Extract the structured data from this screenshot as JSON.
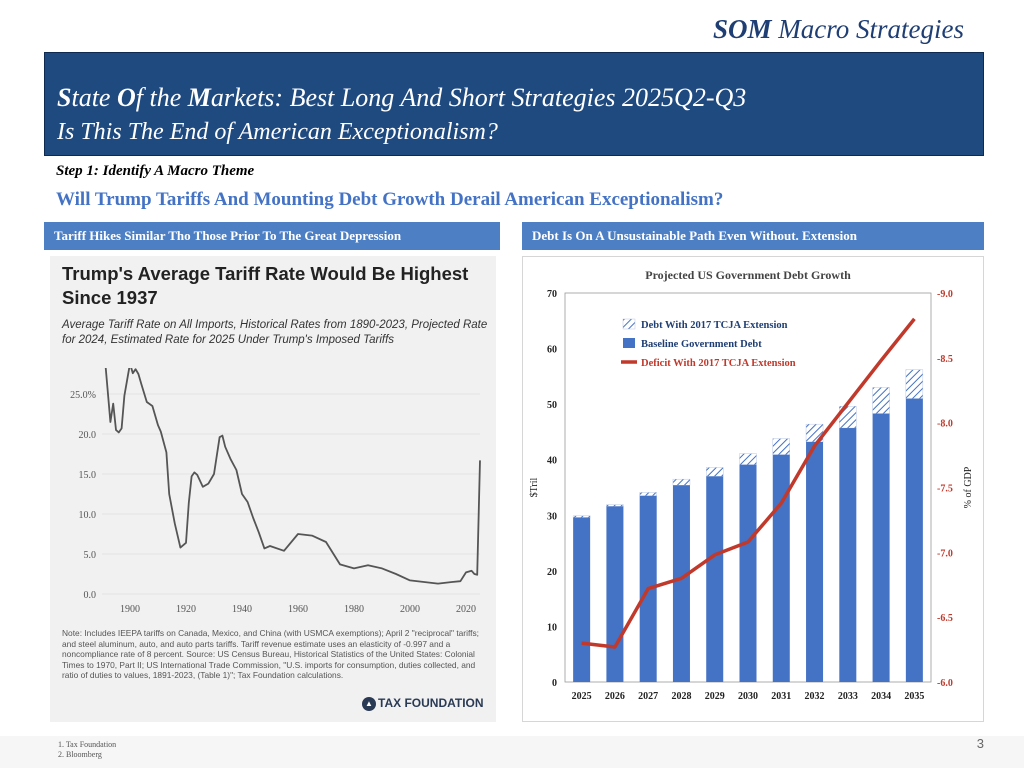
{
  "brand": {
    "bold": "SOM",
    "rest": "Macro Strategies"
  },
  "banner": {
    "title_parts": [
      "S",
      "tate ",
      "O",
      "f the ",
      "M",
      "arkets: Best Long And Short Strategies 2025Q2-Q3"
    ],
    "subtitle": "Is This The End of American Exceptionalism?"
  },
  "step": "Step 1: Identify A Macro Theme",
  "question": "Will Trump Tariffs And Mounting Debt Growth Derail American Exceptionalism?",
  "left_caption": "Tariff Hikes Similar Tho Those Prior To The Great Depression",
  "right_caption": "Debt Is On A Unsustainable Path Even Without. Extension",
  "tariff_panel": {
    "title": "Trump's Average Tariff Rate Would Be Highest Since 1937",
    "subtitle": "Average Tariff Rate on All Imports, Historical Rates from 1890-2023, Projected Rate for 2024, Estimated Rate for 2025 Under Trump's Imposed Tariffs",
    "note": "Note: Includes IEEPA tariffs on Canada, Mexico, and China (with USMCA exemptions); April 2 \"reciprocal\" tariffs; and steel aluminum, auto, and auto parts tariffs. Tariff revenue estimate uses an elasticity of -0.997 and a noncompliance rate of 8 percent. Source: US Census Bureau, Historical Statistics of the United States: Colonial Times to 1970, Part II; US International Trade Commission, \"U.S. imports for consumption, duties collected, and ratio of duties to values, 1891-2023, (Table 1)\"; Tax Foundation calculations.",
    "logo": "TAX FOUNDATION"
  },
  "footnotes": [
    "1.      Tax Foundation",
    "2.      Bloomberg"
  ],
  "page_number": "3",
  "colors": {
    "banner": "#1f4a80",
    "caption": "#4d7fc4",
    "line_tariff": "#555555",
    "bar": "#4472c4",
    "deficit": "#c0392b"
  },
  "chart_data": [
    {
      "type": "line",
      "title": "Trump's Average Tariff Rate Would Be Highest Since 1937",
      "xlabel": "",
      "ylabel": "",
      "xlim": [
        1890,
        2025
      ],
      "ylim": [
        0,
        27
      ],
      "x_ticks": [
        "1900",
        "1920",
        "1940",
        "1960",
        "1980",
        "2000",
        "2020"
      ],
      "y_ticks": [
        "0.0",
        "5.0",
        "10.0",
        "15.0",
        "20.0",
        "25.0%"
      ],
      "series": [
        {
          "x": [
            1891,
            1893,
            1894,
            1895,
            1896,
            1897,
            1898,
            1900,
            1901,
            1902,
            1903,
            1904,
            1906,
            1908,
            1910,
            1911,
            1913,
            1914,
            1916,
            1918,
            1920,
            1921,
            1922,
            1923,
            1924,
            1926,
            1928,
            1930,
            1932,
            1933,
            1934,
            1936,
            1938,
            1940,
            1942,
            1944,
            1946,
            1948,
            1950,
            1955,
            1960,
            1965,
            1970,
            1975,
            1980,
            1985,
            1990,
            1995,
            2000,
            2005,
            2010,
            2015,
            2018,
            2020,
            2022,
            2023,
            2024,
            2025
          ],
          "y": [
            29.6,
            21.5,
            23.8,
            20.5,
            20.2,
            20.7,
            24.8,
            28.8,
            27.6,
            28.1,
            27.5,
            26.3,
            24.0,
            23.5,
            21.1,
            20.3,
            17.7,
            12.5,
            8.8,
            5.8,
            6.4,
            11.4,
            14.7,
            15.2,
            14.9,
            13.4,
            13.8,
            15.0,
            19.6,
            19.8,
            18.4,
            16.8,
            15.5,
            12.5,
            11.5,
            9.5,
            7.7,
            5.7,
            6.0,
            5.4,
            7.5,
            7.3,
            6.5,
            3.7,
            3.2,
            3.6,
            3.2,
            2.5,
            1.7,
            1.5,
            1.3,
            1.5,
            1.6,
            2.7,
            2.9,
            2.5,
            2.4,
            16.7
          ]
        }
      ]
    },
    {
      "type": "bar",
      "title": "Projected US Government Debt Growth",
      "categories": [
        "2025",
        "2026",
        "2027",
        "2028",
        "2029",
        "2030",
        "2031",
        "2032",
        "2033",
        "2034",
        "2035"
      ],
      "ylabel": "$Tril",
      "ylabel_right": "% of GDP",
      "ylim": [
        0,
        70
      ],
      "ylim_right": [
        -6.0,
        -9.0
      ],
      "y_ticks": [
        "0",
        "10",
        "20",
        "30",
        "40",
        "50",
        "60",
        "70"
      ],
      "y_ticks_right": [
        "-6.0",
        "-6.5",
        "-7.0",
        "-7.5",
        "-8.0",
        "-8.5",
        "-9.0"
      ],
      "legend_position": "top-left",
      "series": [
        {
          "name": "Debt With 2017 TCJA Extension",
          "values": [
            29.9,
            31.9,
            34.1,
            36.5,
            38.6,
            41.1,
            43.8,
            46.4,
            49.6,
            53.0,
            56.2
          ],
          "style": "hatched"
        },
        {
          "name": "Baseline Government Debt",
          "values": [
            29.6,
            31.6,
            33.5,
            35.4,
            37.0,
            39.1,
            40.9,
            43.2,
            45.7,
            48.3,
            51.0
          ],
          "style": "solid"
        },
        {
          "name": "Deficit With 2017 TCJA Extension",
          "values": [
            -6.3,
            -6.27,
            -6.72,
            -6.8,
            -6.98,
            -7.08,
            -7.38,
            -7.82,
            -8.15,
            -8.48,
            -8.8
          ],
          "style": "line",
          "axis": "right"
        }
      ]
    }
  ]
}
